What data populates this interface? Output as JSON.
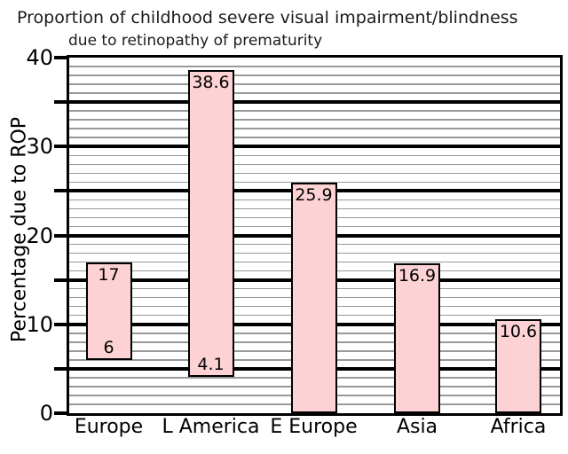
{
  "chart_data": {
    "type": "bar",
    "subtype": "floating-range-bars",
    "title": "Proportion of childhood severe visual impairment/blindness",
    "subtitle": "due to retinopathy of prematurity",
    "ylabel": "Percentage due to ROP",
    "xlabel": "",
    "categories": [
      "Europe",
      "L America",
      "E Europe",
      "Asia",
      "Africa"
    ],
    "bars": [
      {
        "category": "Europe",
        "low": 6,
        "high": 17,
        "low_label": "6",
        "high_label": "17"
      },
      {
        "category": "L America",
        "low": 4.1,
        "high": 38.6,
        "low_label": "4.1",
        "high_label": "38.6"
      },
      {
        "category": "E Europe",
        "low": 0,
        "high": 25.9,
        "low_label": "",
        "high_label": "25.9"
      },
      {
        "category": "Asia",
        "low": 0,
        "high": 16.9,
        "low_label": "",
        "high_label": "16.9"
      },
      {
        "category": "Africa",
        "low": 0,
        "high": 10.6,
        "low_label": "",
        "high_label": "10.6"
      }
    ],
    "ylim": [
      0,
      40
    ],
    "ytick_labels": [
      0,
      10,
      20,
      30,
      40
    ],
    "tick_step": 5,
    "major_grid_step": 5,
    "minor_grid_step": 1,
    "grid": true,
    "legend": null,
    "colors": {
      "background": "#ffffff",
      "bar_fill": "#fcd2d5",
      "bar_border": "#000000",
      "major_grid": "#000000",
      "minor_grid": "#999999",
      "frame": "#000000",
      "text": "#000000"
    }
  }
}
